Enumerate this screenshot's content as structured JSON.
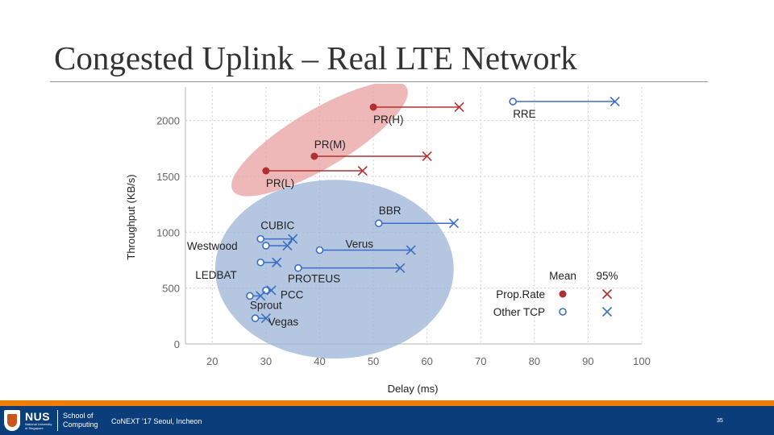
{
  "slide": {
    "title": "Congested Uplink – Real LTE Network"
  },
  "footer": {
    "logo_text": "NUS",
    "logo_subtext": "National University of Singapore",
    "school": "School of Computing",
    "conference": "CoNEXT ’17 Seoul, Incheon",
    "page_number": "35",
    "colors": {
      "bar": "#0b3d7a",
      "accent": "#ef7d00"
    }
  },
  "chart_data": {
    "type": "scatter",
    "xlabel": "Delay (ms)",
    "ylabel": "Throughput (KB/s)",
    "xlim": [
      15,
      100
    ],
    "ylim": [
      0,
      2300
    ],
    "xticks": [
      "20",
      "30",
      "40",
      "50",
      "60",
      "70",
      "80",
      "90",
      "100"
    ],
    "yticks": [
      "0",
      "500",
      "1000",
      "1500",
      "2000"
    ],
    "grid": true,
    "legend": {
      "placement": "bottom-right",
      "columns": [
        "Mean",
        "95%"
      ],
      "entries": [
        {
          "name": "Prop.Rate",
          "color": "#b03030"
        },
        {
          "name": "Other TCP",
          "color": "#3a6fc4"
        }
      ]
    },
    "groups": [
      {
        "name": "Prop.Rate",
        "color": "#e8a0a0"
      },
      {
        "name": "Other TCP",
        "color": "#9bb3d6"
      }
    ],
    "series": [
      {
        "name": "PR(H)",
        "group": "Prop.Rate",
        "mean_delay": 50,
        "p95_delay": 66,
        "throughput": 2120
      },
      {
        "name": "PR(M)",
        "group": "Prop.Rate",
        "mean_delay": 39,
        "p95_delay": 60,
        "throughput": 1680
      },
      {
        "name": "PR(L)",
        "group": "Prop.Rate",
        "mean_delay": 30,
        "p95_delay": 48,
        "throughput": 1550
      },
      {
        "name": "RRE",
        "group": "Other TCP",
        "mean_delay": 76,
        "p95_delay": 95,
        "throughput": 2170
      },
      {
        "name": "BBR",
        "group": "Other TCP",
        "mean_delay": 51,
        "p95_delay": 65,
        "throughput": 1080
      },
      {
        "name": "CUBIC",
        "group": "Other TCP",
        "mean_delay": 29,
        "p95_delay": 35,
        "throughput": 940
      },
      {
        "name": "Westwood",
        "group": "Other TCP",
        "mean_delay": 30,
        "p95_delay": 34,
        "throughput": 880
      },
      {
        "name": "Verus",
        "group": "Other TCP",
        "mean_delay": 40,
        "p95_delay": 57,
        "throughput": 840
      },
      {
        "name": "LEDBAT",
        "group": "Other TCP",
        "mean_delay": 29,
        "p95_delay": 32,
        "throughput": 730
      },
      {
        "name": "PROTEUS",
        "group": "Other TCP",
        "mean_delay": 36,
        "p95_delay": 55,
        "throughput": 680
      },
      {
        "name": "PCC",
        "group": "Other TCP",
        "mean_delay": 30,
        "p95_delay": 31,
        "throughput": 480
      },
      {
        "name": "Sprout",
        "group": "Other TCP",
        "mean_delay": 27,
        "p95_delay": 29,
        "throughput": 430
      },
      {
        "name": "Vegas",
        "group": "Other TCP",
        "mean_delay": 28,
        "p95_delay": 30,
        "throughput": 230
      }
    ]
  }
}
